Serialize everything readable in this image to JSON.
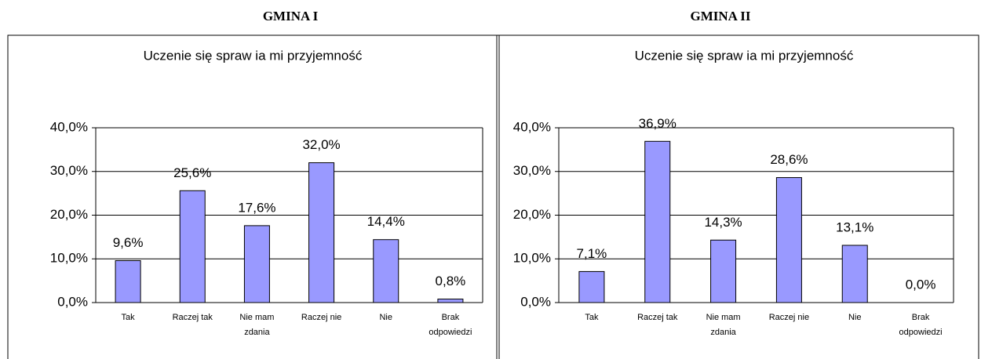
{
  "chart_data": [
    {
      "type": "bar",
      "heading": "GMINA I",
      "title": "Uczenie się spraw ia mi przyjemność",
      "categories": [
        "Tak",
        "Raczej tak",
        "Nie mam zdania",
        "Raczej nie",
        "Nie",
        "Brak odpowiedzi"
      ],
      "values": [
        9.6,
        25.6,
        17.6,
        32.0,
        14.4,
        0.8
      ],
      "value_labels": [
        "9,6%",
        "25,6%",
        "17,6%",
        "32,0%",
        "14,4%",
        "0,8%"
      ],
      "color": "#9999ff",
      "ylim": [
        0,
        40
      ],
      "yticks": [
        {
          "value": 0,
          "label": "0,0%"
        },
        {
          "value": 10,
          "label": "10,0%"
        },
        {
          "value": 20,
          "label": "20,0%"
        },
        {
          "value": 30,
          "label": "30,0%"
        },
        {
          "value": 40,
          "label": "40,0%"
        }
      ],
      "grid": true
    },
    {
      "type": "bar",
      "heading": "GMINA II",
      "title": "Uczenie się spraw ia mi przyjemność",
      "categories": [
        "Tak",
        "Raczej tak",
        "Nie mam zdania",
        "Raczej nie",
        "Nie",
        "Brak odpowiedzi"
      ],
      "values": [
        7.1,
        36.9,
        14.3,
        28.6,
        13.1,
        0.0
      ],
      "value_labels": [
        "7,1%",
        "36,9%",
        "14,3%",
        "28,6%",
        "13,1%",
        "0,0%"
      ],
      "color": "#9999ff",
      "ylim": [
        0,
        40
      ],
      "yticks": [
        {
          "value": 0,
          "label": "0,0%"
        },
        {
          "value": 10,
          "label": "10,0%"
        },
        {
          "value": 20,
          "label": "20,0%"
        },
        {
          "value": 30,
          "label": "30,0%"
        },
        {
          "value": 40,
          "label": "40,0%"
        }
      ],
      "grid": true
    }
  ]
}
